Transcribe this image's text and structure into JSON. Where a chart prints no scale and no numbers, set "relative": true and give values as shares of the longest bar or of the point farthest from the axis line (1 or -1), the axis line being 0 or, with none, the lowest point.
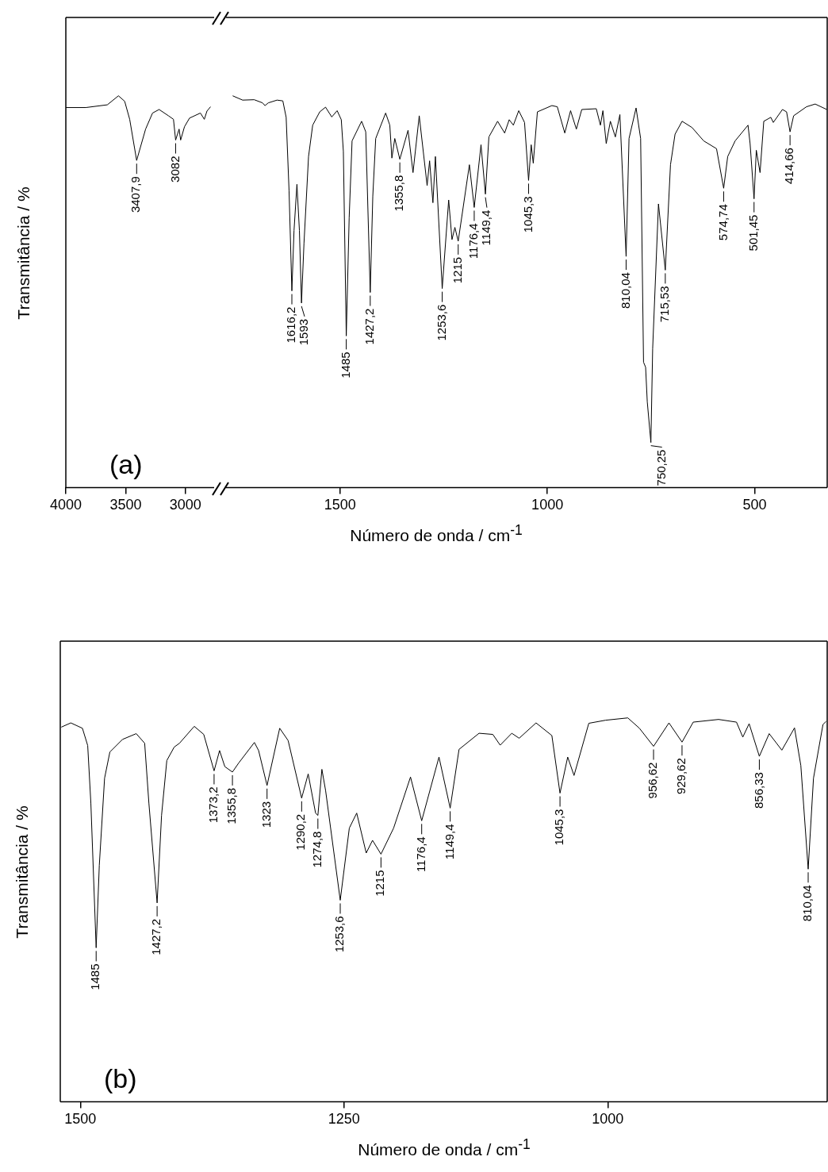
{
  "chart_data": [
    {
      "type": "line",
      "relative": true,
      "ylabel": "Transmitância / %",
      "xlim": [
        4000,
        2760
      ],
      "xticks": [
        4000,
        3500,
        3000
      ],
      "annotations": [
        "(a)",
        {
          "text": "3407,9",
          "x": 3407.9,
          "y": 0.835
        },
        {
          "text": "3082",
          "x": 3082,
          "y": 0.887
        }
      ],
      "x": [
        4000,
        3833,
        3653,
        3560,
        3508,
        3466,
        3407.9,
        3333,
        3275,
        3220,
        3142,
        3100,
        3082,
        3053,
        3040,
        3008,
        2966,
        2875,
        2842,
        2820,
        2790
      ],
      "series": [
        {
          "color": "#000000",
          "values": [
            0.97,
            0.97,
            0.977,
            1,
            0.986,
            0.94,
            0.835,
            0.915,
            0.956,
            0.965,
            0.949,
            0.94,
            0.887,
            0.915,
            0.887,
            0.921,
            0.943,
            0.956,
            0.94,
            0.961,
            0.972
          ]
        }
      ]
    },
    {
      "type": "line",
      "relative": true,
      "xlabel": "Número de onda / cm$^{-1}$",
      "xlim": [
        1775,
        325
      ],
      "xticks": [
        1500,
        1000,
        500
      ],
      "annotations": [
        {
          "text": "1616,2",
          "x": 1616.2,
          "y": 0.502
        },
        {
          "text": "1593",
          "x": 1593,
          "y": 0.471
        },
        {
          "text": "1485",
          "x": 1485,
          "y": 0.387
        },
        {
          "text": "1427,2",
          "x": 1427.2,
          "y": 0.498
        },
        {
          "text": "1355,8",
          "x": 1355.8,
          "y": 0.838
        },
        {
          "text": "1253,6",
          "x": 1253.6,
          "y": 0.508
        },
        {
          "text": "1215",
          "x": 1215,
          "y": 0.629
        },
        {
          "text": "1176,4",
          "x": 1176.4,
          "y": 0.715
        },
        {
          "text": "1149,4",
          "x": 1149.4,
          "y": 0.749
        },
        {
          "text": "1045,3",
          "x": 1045.3,
          "y": 0.784
        },
        {
          "text": "810,04",
          "x": 810.04,
          "y": 0.59
        },
        {
          "text": "750,25",
          "x": 750.25,
          "y": 0.115
        },
        {
          "text": "715,53",
          "x": 715.53,
          "y": 0.555
        },
        {
          "text": "574,74",
          "x": 574.74,
          "y": 0.764
        },
        {
          "text": "501,45",
          "x": 501.45,
          "y": 0.737
        },
        {
          "text": "414,66",
          "x": 414.66,
          "y": 0.908
        }
      ],
      "x": [
        1759,
        1735,
        1707,
        1687,
        1681,
        1673,
        1652,
        1638,
        1630,
        1623,
        1616.2,
        1611,
        1604,
        1598,
        1593,
        1587,
        1576,
        1566,
        1549,
        1535,
        1520,
        1507,
        1497,
        1492,
        1485,
        1478,
        1471,
        1448,
        1438,
        1427.2,
        1421,
        1414,
        1390,
        1380,
        1375,
        1368,
        1355.8,
        1336,
        1324,
        1309,
        1290,
        1284,
        1276,
        1270,
        1253.6,
        1238,
        1230,
        1223,
        1215,
        1188,
        1176.4,
        1160,
        1149.4,
        1141,
        1120,
        1103,
        1092,
        1082,
        1069,
        1055,
        1045.3,
        1039,
        1034,
        1024,
        989,
        976,
        958,
        944,
        930,
        917,
        882,
        872,
        866,
        858,
        848,
        836,
        825,
        810.04,
        803,
        786,
        775,
        768,
        763,
        759,
        750.25,
        746,
        732,
        715.53,
        703,
        692,
        675,
        651,
        623,
        592,
        574.74,
        565,
        547,
        516,
        511,
        501.45,
        496,
        487,
        478,
        461,
        455,
        433,
        423,
        414.66,
        406,
        375,
        354,
        326
      ],
      "series": [
        {
          "color": "#000000",
          "values": [
            1,
            0.989,
            0.99,
            0.982,
            0.975,
            0.982,
            0.989,
            0.987,
            0.945,
            0.758,
            0.502,
            0.656,
            0.774,
            0.656,
            0.471,
            0.623,
            0.845,
            0.925,
            0.959,
            0.971,
            0.946,
            0.962,
            0.939,
            0.858,
            0.387,
            0.689,
            0.885,
            0.935,
            0.908,
            0.498,
            0.744,
            0.891,
            0.956,
            0.925,
            0.841,
            0.891,
            0.838,
            0.912,
            0.804,
            0.949,
            0.771,
            0.834,
            0.727,
            0.845,
            0.508,
            0.734,
            0.633,
            0.664,
            0.629,
            0.824,
            0.715,
            0.875,
            0.749,
            0.895,
            0.935,
            0.905,
            0.939,
            0.925,
            0.962,
            0.932,
            0.784,
            0.875,
            0.828,
            0.959,
            0.975,
            0.972,
            0.905,
            0.962,
            0.915,
            0.965,
            0.967,
            0.925,
            0.962,
            0.878,
            0.935,
            0.895,
            0.952,
            0.59,
            0.891,
            0.969,
            0.891,
            0.32,
            0.307,
            0.219,
            0.115,
            0.354,
            0.724,
            0.555,
            0.824,
            0.902,
            0.935,
            0.919,
            0.885,
            0.865,
            0.764,
            0.845,
            0.885,
            0.925,
            0.878,
            0.737,
            0.861,
            0.804,
            0.935,
            0.945,
            0.932,
            0.965,
            0.959,
            0.908,
            0.949,
            0.972,
            0.979,
            0.965
          ]
        }
      ]
    },
    {
      "type": "line",
      "relative": true,
      "xlabel": "Número de onda / cm$^{-1}$",
      "ylabel": "Transmitância / %",
      "xlim": [
        1519,
        792
      ],
      "xticks": [
        1500,
        1250,
        1000
      ],
      "annotations": [
        "(b)",
        {
          "text": "1485",
          "x": 1485,
          "y": 0.401
        },
        {
          "text": "1427,2",
          "x": 1427.2,
          "y": 0.518
        },
        {
          "text": "1373,2",
          "x": 1373.2,
          "y": 0.862
        },
        {
          "text": "1355,8",
          "x": 1355.8,
          "y": 0.859
        },
        {
          "text": "1323",
          "x": 1323,
          "y": 0.824
        },
        {
          "text": "1290,2",
          "x": 1290.2,
          "y": 0.791
        },
        {
          "text": "1274,8",
          "x": 1274.8,
          "y": 0.746
        },
        {
          "text": "1253,6",
          "x": 1253.6,
          "y": 0.525
        },
        {
          "text": "1215",
          "x": 1215,
          "y": 0.645
        },
        {
          "text": "1176,4",
          "x": 1176.4,
          "y": 0.732
        },
        {
          "text": "1149,4",
          "x": 1149.4,
          "y": 0.765
        },
        {
          "text": "1045,3",
          "x": 1045.3,
          "y": 0.804
        },
        {
          "text": "956,62",
          "x": 956.62,
          "y": 0.926
        },
        {
          "text": "929,62",
          "x": 929.62,
          "y": 0.937
        },
        {
          "text": "856,33",
          "x": 856.33,
          "y": 0.9
        },
        {
          "text": "810,04",
          "x": 810.04,
          "y": 0.606
        }
      ],
      "x": [
        1518,
        1509,
        1498,
        1493,
        1490,
        1485,
        1482,
        1477,
        1472,
        1460,
        1447,
        1439,
        1435,
        1427.2,
        1423,
        1418,
        1411,
        1406,
        1392,
        1383,
        1373.2,
        1368,
        1363,
        1355.8,
        1350,
        1335,
        1331,
        1323,
        1311,
        1303,
        1290.2,
        1284,
        1277,
        1274.8,
        1271,
        1267.5,
        1253.6,
        1245,
        1238,
        1229,
        1223,
        1215,
        1203,
        1187,
        1176.4,
        1160,
        1149.4,
        1141,
        1122,
        1109,
        1102,
        1091,
        1084,
        1068,
        1053,
        1045.3,
        1038,
        1032,
        1018,
        1002,
        981,
        970,
        956.62,
        942,
        929.62,
        919,
        895,
        878,
        872,
        866,
        856.33,
        847,
        835,
        823,
        817,
        810.04,
        805,
        796,
        793
      ],
      "series": [
        {
          "color": "#000000",
          "values": [
            0.976,
            0.987,
            0.973,
            0.928,
            0.778,
            0.401,
            0.616,
            0.843,
            0.911,
            0.944,
            0.959,
            0.934,
            0.778,
            0.518,
            0.746,
            0.889,
            0.924,
            0.934,
            0.978,
            0.957,
            0.862,
            0.915,
            0.873,
            0.859,
            0.882,
            0.936,
            0.915,
            0.824,
            0.973,
            0.941,
            0.791,
            0.854,
            0.752,
            0.746,
            0.866,
            0.811,
            0.525,
            0.713,
            0.752,
            0.648,
            0.681,
            0.645,
            0.713,
            0.846,
            0.732,
            0.898,
            0.765,
            0.918,
            0.96,
            0.957,
            0.929,
            0.96,
            0.947,
            0.987,
            0.954,
            0.804,
            0.898,
            0.85,
            0.986,
            0.994,
            1,
            0.973,
            0.926,
            0.987,
            0.937,
            0.989,
            0.996,
            0.989,
            0.95,
            0.985,
            0.9,
            0.959,
            0.916,
            0.974,
            0.876,
            0.606,
            0.843,
            0.983,
            0.991
          ]
        }
      ]
    }
  ]
}
